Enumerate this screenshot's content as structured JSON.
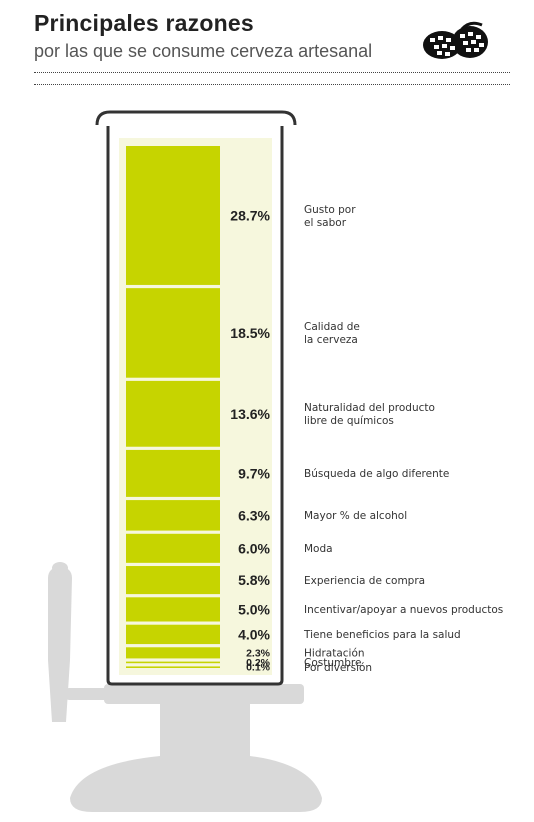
{
  "header": {
    "title": "Principales razones",
    "subtitle": "por las que se consume cerveza artesanal"
  },
  "colors": {
    "bar": "#c6d400",
    "glass_inner": "#f6f7dd",
    "tap": "#d9d9d9",
    "glass_outline": "#333333"
  },
  "icon": "hops-icon",
  "chart_data": {
    "type": "bar",
    "orientation": "stacked-vertical",
    "title": "Principales razones",
    "subtitle": "por las que se consume cerveza artesanal",
    "unit": "%",
    "categories": [
      [
        "Gusto por",
        "el sabor"
      ],
      [
        "Calidad de",
        "la cerveza"
      ],
      [
        "Naturalidad del producto",
        "libre de químicos"
      ],
      [
        "Búsqueda de algo diferente"
      ],
      [
        "Mayor % de alcohol"
      ],
      [
        "Moda"
      ],
      [
        "Experiencia de compra"
      ],
      [
        "Incentivar/apoyar a nuevos productos"
      ],
      [
        "Tiene beneficios para la salud"
      ],
      [
        "Hidratación"
      ],
      [
        "Costumbre"
      ],
      [
        "Por diversión"
      ]
    ],
    "values": [
      28.7,
      18.5,
      13.6,
      9.7,
      6.3,
      6.0,
      5.8,
      5.0,
      4.0,
      2.3,
      0.2,
      0.1
    ],
    "labels": [
      "28.7%",
      "18.5%",
      "13.6%",
      "9.7%",
      "6.3%",
      "6.0%",
      "5.8%",
      "5.0%",
      "4.0%",
      "2.3%",
      "0.2%",
      "0.1%"
    ]
  }
}
